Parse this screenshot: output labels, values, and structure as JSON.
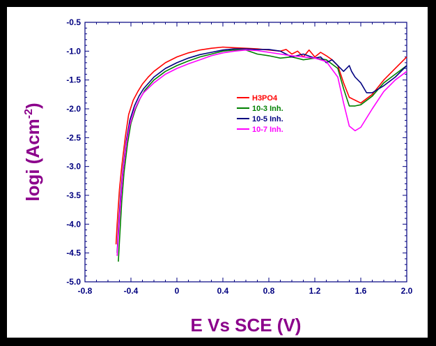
{
  "chart_data": {
    "type": "line",
    "xlabel": "E Vs SCE (V)",
    "ylabel_main": "logi (Acm",
    "ylabel_sup": "-2",
    "ylabel_close": ")",
    "xlim": [
      -0.8,
      2.0
    ],
    "ylim": [
      -5.0,
      -0.5
    ],
    "x_ticks": [
      {
        "value": -0.8,
        "label": "-0.8"
      },
      {
        "value": -0.4,
        "label": "-0.4"
      },
      {
        "value": 0.0,
        "label": "0"
      },
      {
        "value": 0.4,
        "label": "0.4"
      },
      {
        "value": 0.8,
        "label": "0.8"
      },
      {
        "value": 1.2,
        "label": "1.2"
      },
      {
        "value": 1.6,
        "label": "1.6"
      },
      {
        "value": 2.0,
        "label": "2.0"
      }
    ],
    "y_ticks": [
      {
        "value": -0.5,
        "label": "-0.5"
      },
      {
        "value": -1.0,
        "label": "-1.0"
      },
      {
        "value": -1.5,
        "label": "-1.5"
      },
      {
        "value": -2.0,
        "label": "-2.0"
      },
      {
        "value": -2.5,
        "label": "-2.5"
      },
      {
        "value": -3.0,
        "label": "-3.0"
      },
      {
        "value": -3.5,
        "label": "-3.5"
      },
      {
        "value": -4.0,
        "label": "-4.0"
      },
      {
        "value": -4.5,
        "label": "-4.5"
      },
      {
        "value": -5.0,
        "label": "-5.0"
      }
    ],
    "grid": false,
    "legend_position": "center",
    "series": [
      {
        "name": "H3PO4",
        "color": "#ff0000",
        "x": [
          -0.53,
          -0.52,
          -0.5,
          -0.48,
          -0.45,
          -0.42,
          -0.38,
          -0.34,
          -0.3,
          -0.25,
          -0.2,
          -0.1,
          0.0,
          0.1,
          0.2,
          0.3,
          0.4,
          0.5,
          0.6,
          0.7,
          0.8,
          0.9,
          0.95,
          1.0,
          1.05,
          1.1,
          1.15,
          1.2,
          1.25,
          1.3,
          1.35,
          1.4,
          1.45,
          1.5,
          1.55,
          1.6,
          1.7,
          1.8,
          1.9,
          2.0
        ],
        "y": [
          -4.35,
          -4.0,
          -3.4,
          -3.0,
          -2.5,
          -2.1,
          -1.85,
          -1.7,
          -1.57,
          -1.45,
          -1.35,
          -1.2,
          -1.1,
          -1.03,
          -0.98,
          -0.95,
          -0.93,
          -0.94,
          -0.95,
          -0.96,
          -0.98,
          -1.0,
          -0.97,
          -1.05,
          -1.0,
          -1.1,
          -0.98,
          -1.1,
          -1.02,
          -1.08,
          -1.15,
          -1.25,
          -1.55,
          -1.8,
          -1.85,
          -1.9,
          -1.75,
          -1.5,
          -1.3,
          -1.1
        ]
      },
      {
        "name": "10-3 Inh.",
        "color": "#008000",
        "x": [
          -0.51,
          -0.5,
          -0.48,
          -0.46,
          -0.43,
          -0.4,
          -0.36,
          -0.32,
          -0.28,
          -0.2,
          -0.1,
          0.0,
          0.1,
          0.2,
          0.3,
          0.4,
          0.5,
          0.6,
          0.7,
          0.8,
          0.85,
          0.9,
          1.0,
          1.1,
          1.2,
          1.3,
          1.4,
          1.45,
          1.5,
          1.55,
          1.6,
          1.7,
          1.8,
          1.9,
          2.0
        ],
        "y": [
          -4.65,
          -4.3,
          -3.6,
          -3.1,
          -2.6,
          -2.25,
          -2.0,
          -1.82,
          -1.68,
          -1.5,
          -1.35,
          -1.25,
          -1.17,
          -1.1,
          -1.05,
          -1.0,
          -0.98,
          -0.98,
          -1.05,
          -1.08,
          -1.1,
          -1.12,
          -1.1,
          -1.15,
          -1.12,
          -1.15,
          -1.3,
          -1.65,
          -1.95,
          -1.95,
          -1.93,
          -1.78,
          -1.55,
          -1.4,
          -1.25
        ]
      },
      {
        "name": "10-5 Inh.",
        "color": "#000080",
        "x": [
          -0.52,
          -0.51,
          -0.49,
          -0.47,
          -0.44,
          -0.41,
          -0.37,
          -0.33,
          -0.29,
          -0.2,
          -0.1,
          0.0,
          0.1,
          0.2,
          0.3,
          0.4,
          0.5,
          0.6,
          0.7,
          0.8,
          0.9,
          0.95,
          1.0,
          1.1,
          1.2,
          1.25,
          1.3,
          1.35,
          1.4,
          1.45,
          1.5,
          1.52,
          1.55,
          1.6,
          1.65,
          1.7,
          1.8,
          1.9,
          2.0
        ],
        "y": [
          -4.5,
          -4.1,
          -3.5,
          -3.05,
          -2.55,
          -2.2,
          -1.95,
          -1.78,
          -1.65,
          -1.45,
          -1.3,
          -1.2,
          -1.12,
          -1.06,
          -1.02,
          -0.98,
          -0.96,
          -0.96,
          -0.97,
          -0.97,
          -1.0,
          -1.05,
          -1.1,
          -1.05,
          -1.12,
          -1.1,
          -1.2,
          -1.15,
          -1.25,
          -1.35,
          -1.25,
          -1.35,
          -1.45,
          -1.55,
          -1.72,
          -1.72,
          -1.6,
          -1.45,
          -1.25
        ]
      },
      {
        "name": "10-7 Inh.",
        "color": "#ff00ff",
        "x": [
          -0.52,
          -0.51,
          -0.49,
          -0.47,
          -0.44,
          -0.41,
          -0.37,
          -0.33,
          -0.29,
          -0.2,
          -0.1,
          0.0,
          0.1,
          0.2,
          0.3,
          0.4,
          0.5,
          0.6,
          0.7,
          0.8,
          0.9,
          1.0,
          1.1,
          1.2,
          1.3,
          1.4,
          1.45,
          1.5,
          1.55,
          1.6,
          1.7,
          1.8,
          1.9,
          2.0
        ],
        "y": [
          -4.55,
          -4.2,
          -3.6,
          -3.1,
          -2.6,
          -2.28,
          -2.02,
          -1.85,
          -1.72,
          -1.55,
          -1.4,
          -1.3,
          -1.22,
          -1.15,
          -1.08,
          -1.03,
          -1.0,
          -0.98,
          -0.99,
          -1.02,
          -1.05,
          -1.08,
          -1.1,
          -1.12,
          -1.18,
          -1.45,
          -1.9,
          -2.3,
          -2.38,
          -2.32,
          -2.0,
          -1.7,
          -1.5,
          -1.35
        ]
      }
    ]
  }
}
